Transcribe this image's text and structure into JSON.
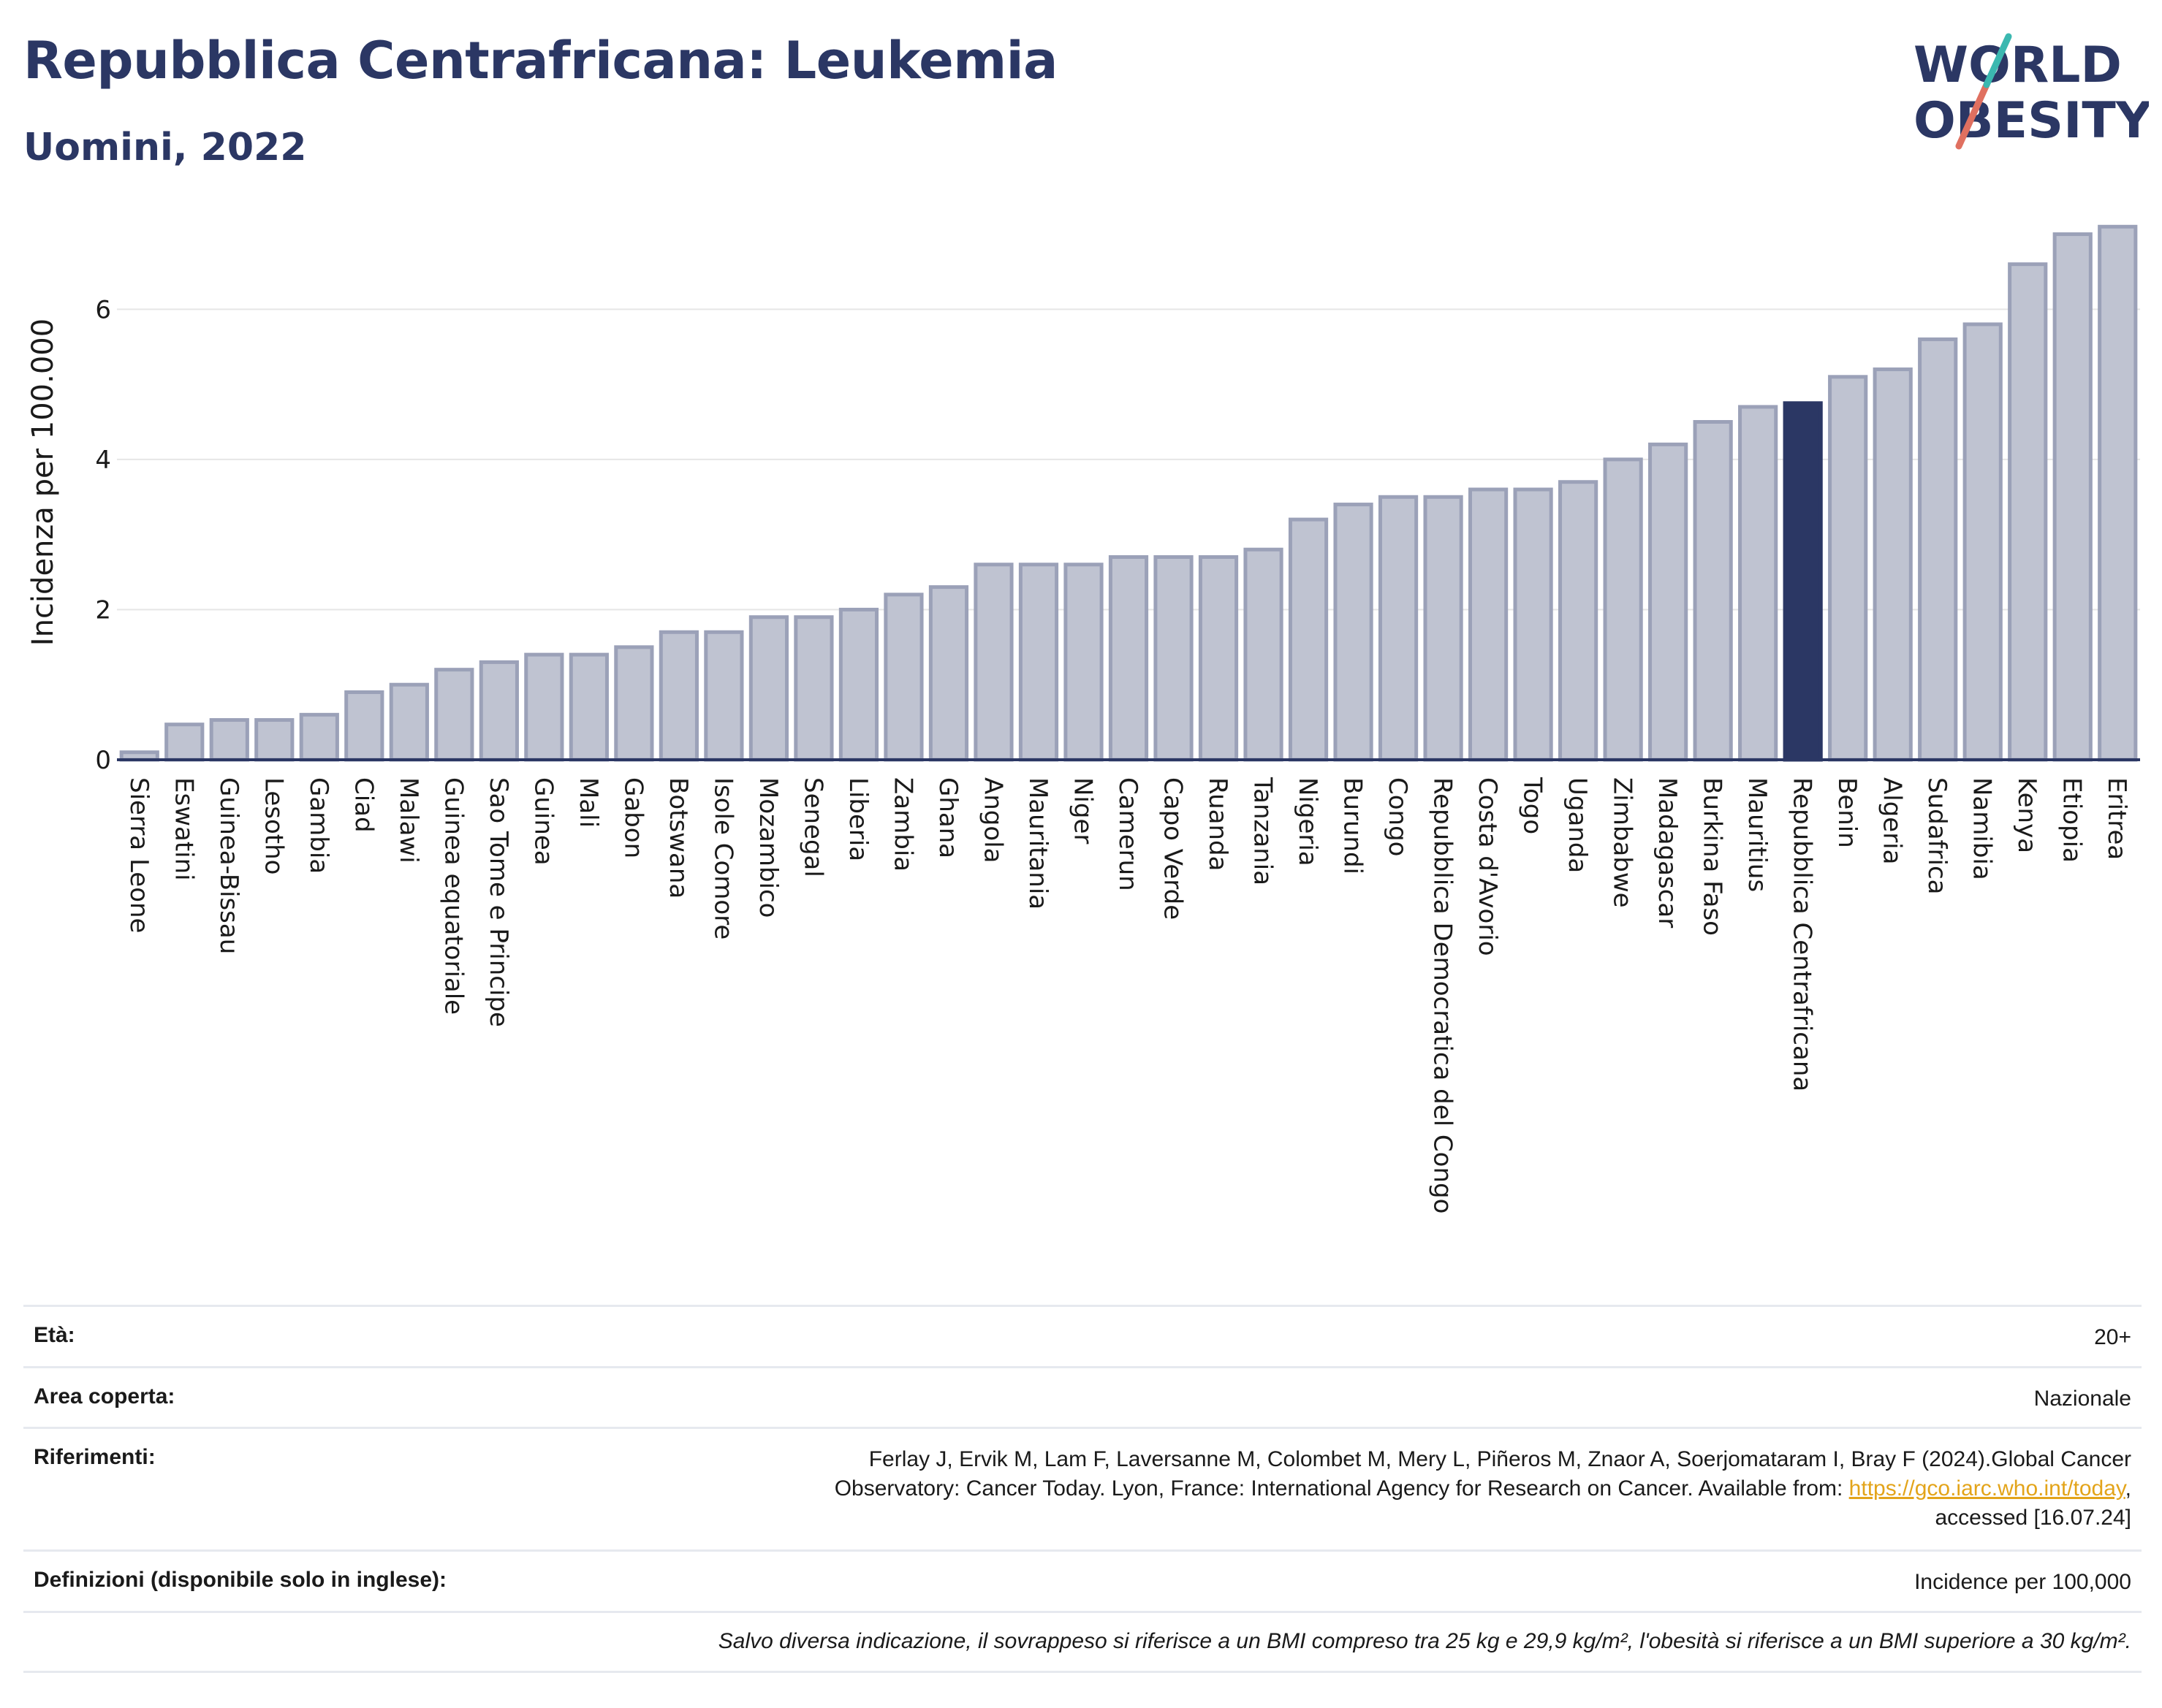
{
  "header": {
    "title": "Repubblica Centrafricana: Leukemia",
    "subtitle": "Uomini, 2022"
  },
  "logo": {
    "line1": "WORLD",
    "line2": "OBESITY"
  },
  "chart_data": {
    "type": "bar",
    "title": "Repubblica Centrafricana: Leukemia",
    "subtitle": "Uomini, 2022",
    "xlabel": "",
    "ylabel": "Incidenza per 100.000",
    "ylim": [
      0,
      7.2
    ],
    "yticks": [
      0,
      2,
      4,
      6
    ],
    "grid": true,
    "highlight": "Repubblica Centrafricana",
    "colors": {
      "bar": "#bfc3d1",
      "bar_border": "#9ba1b8",
      "highlight": "#2b3764",
      "grid": "#e6e6e6",
      "axis": "#2b3764"
    },
    "categories": [
      "Sierra Leone",
      "Eswatini",
      "Guinea-Bissau",
      "Lesotho",
      "Gambia",
      "Ciad",
      "Malawi",
      "Guinea equatoriale",
      "Sao Tome e Principe",
      "Guinea",
      "Mali",
      "Gabon",
      "Botswana",
      "Isole Comore",
      "Mozambico",
      "Senegal",
      "Liberia",
      "Zambia",
      "Ghana",
      "Angola",
      "Mauritania",
      "Niger",
      "Camerun",
      "Capo Verde",
      "Ruanda",
      "Tanzania",
      "Nigeria",
      "Burundi",
      "Congo",
      "Repubblica Democratica del Congo",
      "Costa d'Avorio",
      "Togo",
      "Uganda",
      "Zimbabwe",
      "Madagascar",
      "Burkina Faso",
      "Mauritius",
      "Repubblica Centrafricana",
      "Benin",
      "Algeria",
      "Sudafrica",
      "Namibia",
      "Kenya",
      "Etiopia",
      "Eritrea"
    ],
    "values": [
      0.1,
      0.47,
      0.53,
      0.53,
      0.6,
      0.9,
      1.0,
      1.2,
      1.3,
      1.4,
      1.4,
      1.5,
      1.7,
      1.7,
      1.9,
      1.9,
      2.0,
      2.2,
      2.3,
      2.6,
      2.6,
      2.6,
      2.7,
      2.7,
      2.7,
      2.8,
      3.2,
      3.4,
      3.5,
      3.5,
      3.6,
      3.6,
      3.7,
      4.0,
      4.2,
      4.5,
      4.7,
      4.75,
      5.1,
      5.2,
      5.6,
      5.8,
      6.6,
      7.0,
      7.1
    ]
  },
  "info": {
    "age_label": "Età:",
    "age_value": "20+",
    "area_label": "Area coperta:",
    "area_value": "Nazionale",
    "refs_label": "Riferimenti:",
    "refs_line1": "Ferlay J, Ervik M, Lam F, Laversanne M, Colombet M, Mery L, Piñeros M, Znaor A, Soerjomataram I, Bray F (2024).Global Cancer",
    "refs_line2_pre": "Observatory: Cancer Today. Lyon, France: International Agency for Research on Cancer. Available from: ",
    "refs_link": "https://gco.iarc.who.int/today",
    "refs_line2_post": ",",
    "refs_line3": "accessed [16.07.24]",
    "defs_label": "Definizioni (disponibile solo in inglese):",
    "defs_value": "Incidence per 100,000",
    "note": "Salvo diversa indicazione, il sovrappeso si riferisce a un BMI compreso tra 25 kg e 29,9 kg/m², l'obesità si riferisce a un BMI superiore a 30 kg/m²."
  }
}
